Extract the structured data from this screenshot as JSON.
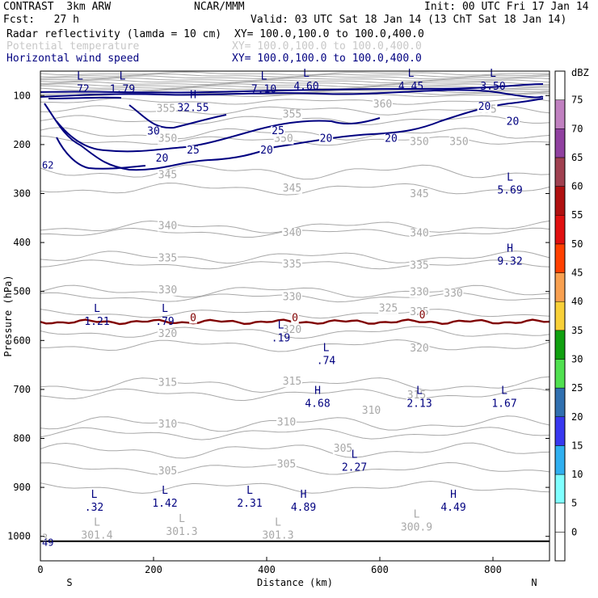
{
  "header": {
    "title_left": "CONTRAST  3km ARW",
    "title_center": "NCAR/MMM",
    "init": "Init: 00 UTC Fri 17 Jan 14",
    "fcst": "Fcst:   27 h",
    "valid": "Valid: 03 UTC Sat 18 Jan 14 (13 ChT Sat 18 Jan 14)",
    "fields": [
      {
        "name": "Radar reflectivity (lamda = 10 cm)",
        "xy": "XY= 100.0,100.0 to 100.0,400.0",
        "color": "#000000"
      },
      {
        "name": "Potential temperature",
        "xy": "XY= 100.0,100.0 to 100.0,400.0",
        "color": "#c8c8c8"
      },
      {
        "name": "Horizontal wind speed",
        "xy": "XY= 100.0,100.0 to 100.0,400.0",
        "color": "#000080"
      }
    ]
  },
  "colors": {
    "theta": "#a8a8a8",
    "wind": "#000080",
    "zero_line": "#800000",
    "ground": "#000000"
  },
  "chart_data": {
    "type": "contour",
    "xlabel": "Distance (km)",
    "ylabel": "Pressure (hPa)",
    "xlim": [
      0,
      900
    ],
    "ylim": [
      1050,
      50
    ],
    "x_ticks": [
      0,
      200,
      400,
      600,
      800
    ],
    "y_ticks": [
      100,
      200,
      300,
      400,
      500,
      600,
      700,
      800,
      900,
      1000
    ],
    "x_end_labels": {
      "left": "S",
      "right": "N"
    },
    "theta_labels": [
      {
        "text": "360",
        "x": 605,
        "y": 118
      },
      {
        "text": "355",
        "x": 222,
        "y": 127
      },
      {
        "text": "355",
        "x": 445,
        "y": 138
      },
      {
        "text": "355",
        "x": 790,
        "y": 128
      },
      {
        "text": "350",
        "x": 225,
        "y": 188
      },
      {
        "text": "350",
        "x": 430,
        "y": 188
      },
      {
        "text": "350",
        "x": 670,
        "y": 194
      },
      {
        "text": "350",
        "x": 740,
        "y": 194
      },
      {
        "text": "345",
        "x": 225,
        "y": 262
      },
      {
        "text": "345",
        "x": 445,
        "y": 289
      },
      {
        "text": "345",
        "x": 670,
        "y": 301
      },
      {
        "text": "340",
        "x": 225,
        "y": 366
      },
      {
        "text": "340",
        "x": 445,
        "y": 380
      },
      {
        "text": "340",
        "x": 670,
        "y": 381
      },
      {
        "text": "335",
        "x": 225,
        "y": 432
      },
      {
        "text": "335",
        "x": 445,
        "y": 444
      },
      {
        "text": "335",
        "x": 670,
        "y": 447
      },
      {
        "text": "330",
        "x": 225,
        "y": 497
      },
      {
        "text": "330",
        "x": 445,
        "y": 511
      },
      {
        "text": "330",
        "x": 670,
        "y": 501
      },
      {
        "text": "330",
        "x": 730,
        "y": 504
      },
      {
        "text": "325",
        "x": 615,
        "y": 534
      },
      {
        "text": "325",
        "x": 670,
        "y": 542
      },
      {
        "text": "320",
        "x": 225,
        "y": 586
      },
      {
        "text": "320",
        "x": 445,
        "y": 578
      },
      {
        "text": "320",
        "x": 670,
        "y": 616
      },
      {
        "text": "315",
        "x": 225,
        "y": 686
      },
      {
        "text": "315",
        "x": 445,
        "y": 684
      },
      {
        "text": "315",
        "x": 665,
        "y": 712
      },
      {
        "text": "310",
        "x": 225,
        "y": 771
      },
      {
        "text": "310",
        "x": 435,
        "y": 767
      },
      {
        "text": "310",
        "x": 585,
        "y": 743
      },
      {
        "text": "305",
        "x": 225,
        "y": 867
      },
      {
        "text": "305",
        "x": 435,
        "y": 853
      },
      {
        "text": "305",
        "x": 535,
        "y": 821
      }
    ],
    "wind_labels": [
      {
        "text": "30",
        "x": 200,
        "y": 173
      },
      {
        "text": "25",
        "x": 270,
        "y": 212
      },
      {
        "text": "25",
        "x": 420,
        "y": 172
      },
      {
        "text": "20",
        "x": 215,
        "y": 228
      },
      {
        "text": "20",
        "x": 400,
        "y": 212
      },
      {
        "text": "20",
        "x": 505,
        "y": 188
      },
      {
        "text": "20",
        "x": 620,
        "y": 188
      },
      {
        "text": "20",
        "x": 785,
        "y": 123
      },
      {
        "text": "20",
        "x": 835,
        "y": 153
      },
      {
        "text": "0",
        "x": 270,
        "y": 554
      },
      {
        "text": "0",
        "x": 450,
        "y": 554
      },
      {
        "text": "0",
        "x": 675,
        "y": 548
      }
    ],
    "extrema": [
      {
        "type": "L",
        "value": ".72",
        "x": 70,
        "y": 74,
        "color": "#000080"
      },
      {
        "type": "L",
        "value": "1.79",
        "x": 145,
        "y": 74,
        "color": "#000080"
      },
      {
        "type": "L",
        "value": "7.10",
        "x": 395,
        "y": 74,
        "color": "#000080"
      },
      {
        "type": "L",
        "value": "4.60",
        "x": 470,
        "y": 68,
        "color": "#000080"
      },
      {
        "type": "L",
        "value": "4.45",
        "x": 655,
        "y": 68,
        "color": "#000080"
      },
      {
        "type": "L",
        "value": "3.50",
        "x": 800,
        "y": 68,
        "color": "#000080"
      },
      {
        "type": "H",
        "value": "32.55",
        "x": 270,
        "y": 112,
        "color": "#000080"
      },
      {
        "type": "L",
        "value": "5.69",
        "x": 830,
        "y": 280,
        "color": "#000080"
      },
      {
        "type": "H",
        "value": "9.32",
        "x": 830,
        "y": 425,
        "color": "#000080"
      },
      {
        "type": "L",
        "value": "1.21",
        "x": 100,
        "y": 548,
        "color": "#000080"
      },
      {
        "type": "L",
        "value": ".79",
        "x": 220,
        "y": 548,
        "color": "#000080"
      },
      {
        "type": "L",
        "value": ".19",
        "x": 425,
        "y": 582,
        "color": "#000080"
      },
      {
        "type": "L",
        "value": ".74",
        "x": 505,
        "y": 628,
        "color": "#000080"
      },
      {
        "type": "H",
        "value": "4.68",
        "x": 490,
        "y": 716,
        "color": "#000080"
      },
      {
        "type": "L",
        "value": "2.13",
        "x": 670,
        "y": 716,
        "color": "#000080"
      },
      {
        "type": "L",
        "value": "1.67",
        "x": 820,
        "y": 716,
        "color": "#000080"
      },
      {
        "type": "L",
        "value": "2.27",
        "x": 555,
        "y": 846,
        "color": "#000080"
      },
      {
        "type": "L",
        "value": ".32",
        "x": 95,
        "y": 928,
        "color": "#000080"
      },
      {
        "type": "L",
        "value": "1.42",
        "x": 220,
        "y": 920,
        "color": "#000080"
      },
      {
        "type": "L",
        "value": "2.31",
        "x": 370,
        "y": 920,
        "color": "#000080"
      },
      {
        "type": "H",
        "value": "4.89",
        "x": 465,
        "y": 928,
        "color": "#000080"
      },
      {
        "type": "H",
        "value": "4.49",
        "x": 730,
        "y": 928,
        "color": "#000080"
      },
      {
        "type": "L",
        "value": "301.4",
        "x": 100,
        "y": 985,
        "color": "#a8a8a8"
      },
      {
        "type": "L",
        "value": "301.3",
        "x": 250,
        "y": 977,
        "color": "#a8a8a8"
      },
      {
        "type": "L",
        "value": "301.3",
        "x": 420,
        "y": 985,
        "color": "#a8a8a8"
      },
      {
        "type": "L",
        "value": "300.9",
        "x": 665,
        "y": 968,
        "color": "#a8a8a8"
      }
    ],
    "edge_labels": [
      {
        "text": "62",
        "x": 0,
        "y": 242,
        "color": "#000080"
      },
      {
        "text": "49",
        "x": 0,
        "y": 1013,
        "color": "#000080"
      },
      {
        "text": "3",
        "x": 0,
        "y": 1003,
        "color": "#a8a8a8"
      }
    ],
    "zero_line_y": 562,
    "ground_y": 1010
  },
  "colorbar": {
    "unit": "dBZ",
    "levels": [
      {
        "label": "0",
        "color": "#ffffff"
      },
      {
        "label": "5",
        "color": "#ffffff"
      },
      {
        "label": "10",
        "color": "#80ffff"
      },
      {
        "label": "15",
        "color": "#30b0f0"
      },
      {
        "label": "20",
        "color": "#3838f0"
      },
      {
        "label": "25",
        "color": "#3070b0"
      },
      {
        "label": "30",
        "color": "#50e050"
      },
      {
        "label": "35",
        "color": "#10a010"
      },
      {
        "label": "40",
        "color": "#f8d038"
      },
      {
        "label": "45",
        "color": "#f8a050"
      },
      {
        "label": "50",
        "color": "#ff4000"
      },
      {
        "label": "55",
        "color": "#e01010"
      },
      {
        "label": "60",
        "color": "#b01010"
      },
      {
        "label": "65",
        "color": "#a04050"
      },
      {
        "label": "70",
        "color": "#9040a0"
      },
      {
        "label": "75",
        "color": "#c080c0"
      },
      {
        "label": "",
        "color": "#ffffff"
      }
    ]
  }
}
